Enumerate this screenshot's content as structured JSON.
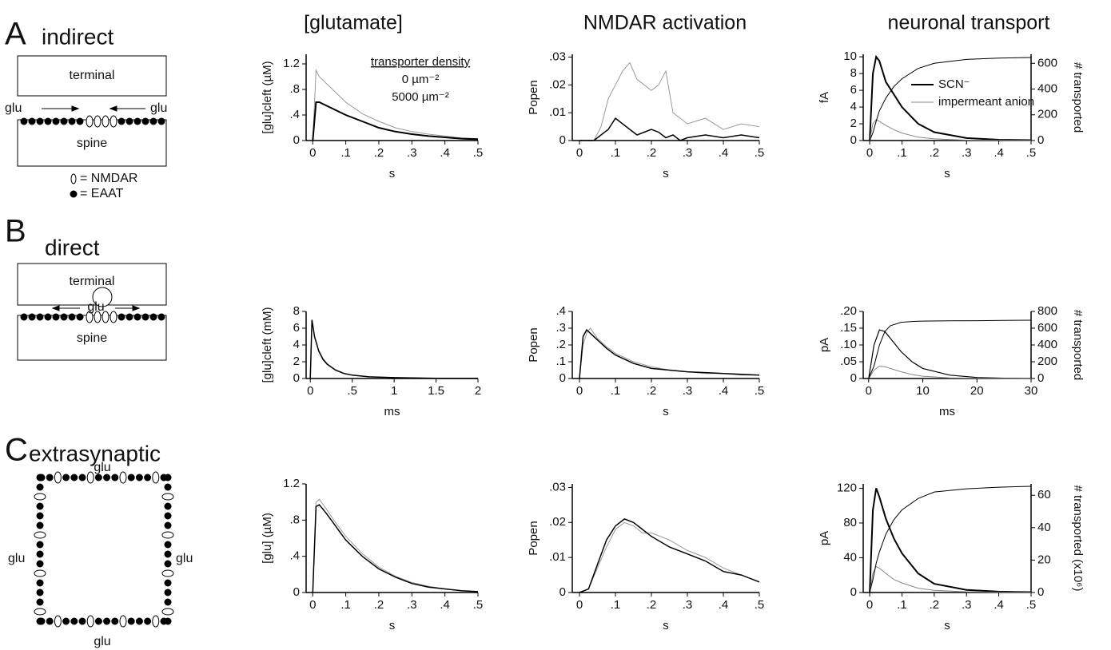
{
  "headers": [
    "[glutamate]",
    "NMDAR activation",
    "neuronal transport"
  ],
  "panels": [
    {
      "letter": "A",
      "title": "indirect",
      "terminal": "terminal",
      "spine": "spine",
      "glu_left": "glu",
      "glu_right": "glu",
      "nmdar": "= NMDAR",
      "eaat": "= EAAT"
    },
    {
      "letter": "B",
      "title": "direct",
      "terminal": "terminal",
      "spine": "spine",
      "glu": "glu"
    },
    {
      "letter": "C",
      "title": "extrasynaptic",
      "glu_top": "glu",
      "glu_left": "glu",
      "glu_right": "glu",
      "glu_bottom": "glu"
    }
  ],
  "chart_data": [
    {
      "type": "line",
      "xlabel": "s",
      "ylabel": "[glu]cleft (µM)",
      "xlim": [
        -0.02,
        0.5
      ],
      "ylim": [
        0,
        1.35
      ],
      "xticks": [
        0,
        {
          "value": 0.1,
          "label": ".1"
        },
        {
          "value": 0.2,
          "label": ".2"
        },
        {
          "value": 0.3,
          "label": ".3"
        },
        {
          "value": 0.4,
          "label": ".4"
        },
        {
          "value": 0.5,
          "label": ".5"
        }
      ],
      "yticks": [
        0,
        {
          "value": 0.4,
          "label": ".4"
        },
        {
          "value": 0.8,
          "label": ".8"
        },
        1.2
      ],
      "legend_title": "transporter density",
      "legend": "upper right",
      "x": [
        0,
        0.01,
        0.02,
        0.04,
        0.06,
        0.08,
        0.1,
        0.15,
        0.2,
        0.25,
        0.3,
        0.35,
        0.4,
        0.45,
        0.5
      ],
      "series": [
        {
          "name": "0 µm⁻²",
          "color": "#999999",
          "line_width": 1,
          "values": [
            0,
            1.1,
            1.0,
            0.9,
            0.8,
            0.7,
            0.6,
            0.42,
            0.3,
            0.2,
            0.14,
            0.1,
            0.07,
            0.04,
            0.03
          ]
        },
        {
          "name": "5000 µm⁻²",
          "color": "#000000",
          "line_width": 2,
          "values": [
            0,
            0.6,
            0.6,
            0.55,
            0.5,
            0.45,
            0.4,
            0.3,
            0.2,
            0.14,
            0.1,
            0.07,
            0.05,
            0.03,
            0.02
          ]
        }
      ]
    },
    {
      "type": "line",
      "xlabel": "s",
      "ylabel": "Popen",
      "xlim": [
        -0.02,
        0.5
      ],
      "ylim": [
        0,
        0.031
      ],
      "xticks": [
        0,
        {
          "value": 0.1,
          "label": ".1"
        },
        {
          "value": 0.2,
          "label": ".2"
        },
        {
          "value": 0.3,
          "label": ".3"
        },
        {
          "value": 0.4,
          "label": ".4"
        },
        {
          "value": 0.5,
          "label": ".5"
        }
      ],
      "yticks": [
        0,
        {
          "value": 0.01,
          "label": ".01"
        },
        {
          "value": 0.02,
          "label": ".02"
        },
        {
          "value": 0.03,
          "label": ".03"
        }
      ],
      "x": [
        0,
        0.04,
        0.06,
        0.08,
        0.1,
        0.12,
        0.14,
        0.16,
        0.18,
        0.2,
        0.22,
        0.24,
        0.26,
        0.28,
        0.3,
        0.35,
        0.4,
        0.45,
        0.5
      ],
      "series": [
        {
          "color": "#999999",
          "line_width": 1,
          "values": [
            0,
            0,
            0.005,
            0.015,
            0.02,
            0.025,
            0.028,
            0.022,
            0.02,
            0.018,
            0.02,
            0.025,
            0.01,
            0.008,
            0.006,
            0.008,
            0.004,
            0.006,
            0.005
          ]
        },
        {
          "color": "#000000",
          "line_width": 1.5,
          "values": [
            0,
            0,
            0.002,
            0.004,
            0.008,
            0.006,
            0.004,
            0.002,
            0.003,
            0.004,
            0.003,
            0.001,
            0.002,
            0,
            0.001,
            0.002,
            0.001,
            0.002,
            0.001
          ]
        }
      ]
    },
    {
      "type": "line",
      "xlabel": "s",
      "ylabel": "fA",
      "y2label": "# transported",
      "xlim": [
        -0.02,
        0.5
      ],
      "ylim": [
        0,
        10.3
      ],
      "y2lim": [
        0,
        670
      ],
      "xticks": [
        0,
        {
          "value": 0.1,
          "label": ".1"
        },
        {
          "value": 0.2,
          "label": ".2"
        },
        {
          "value": 0.3,
          "label": ".3"
        },
        {
          "value": 0.4,
          "label": ".4"
        },
        {
          "value": 0.5,
          "label": ".5"
        }
      ],
      "yticks": [
        0,
        2,
        4,
        6,
        8,
        10
      ],
      "y2ticks": [
        0,
        200,
        400,
        600
      ],
      "legend": "upper right",
      "x": [
        0,
        0.01,
        0.02,
        0.03,
        0.05,
        0.075,
        0.1,
        0.15,
        0.2,
        0.3,
        0.4,
        0.5
      ],
      "series": [
        {
          "name": "SCN⁻",
          "color": "#000000",
          "line_width": 2,
          "values": [
            0,
            8,
            10,
            9.5,
            7,
            5.5,
            4,
            2,
            1,
            0.3,
            0.1,
            0.05
          ]
        },
        {
          "name": "impermeant anion",
          "color": "#888888",
          "line_width": 1,
          "values": [
            0,
            2,
            2.5,
            2.3,
            1.8,
            1.3,
            0.9,
            0.4,
            0.2,
            0.05,
            0.02,
            0
          ]
        },
        {
          "color": "#000000",
          "line_width": 1,
          "axis": "y2",
          "values": [
            0,
            60,
            150,
            230,
            330,
            420,
            480,
            560,
            600,
            630,
            640,
            645
          ]
        }
      ]
    },
    {
      "type": "line",
      "xlabel": "ms",
      "ylabel": "[glu]cleft (mM)",
      "xlim": [
        -0.05,
        2
      ],
      "ylim": [
        0,
        8
      ],
      "xticks": [
        0,
        {
          "value": 0.5,
          "label": ".5"
        },
        1,
        1.5,
        2
      ],
      "yticks": [
        0,
        2,
        4,
        6,
        8
      ],
      "x": [
        0,
        0.02,
        0.05,
        0.1,
        0.15,
        0.2,
        0.3,
        0.4,
        0.5,
        0.7,
        1,
        1.5,
        2
      ],
      "series": [
        {
          "color": "#999999",
          "line_width": 1,
          "values": [
            0,
            6.8,
            5.1,
            3.4,
            2.4,
            1.8,
            1.05,
            0.65,
            0.42,
            0.21,
            0.1,
            0.03,
            0.01
          ]
        },
        {
          "color": "#000000",
          "line_width": 1.5,
          "values": [
            0,
            7,
            5,
            3.3,
            2.3,
            1.7,
            1,
            0.6,
            0.4,
            0.2,
            0.1,
            0.03,
            0.01
          ]
        }
      ]
    },
    {
      "type": "line",
      "xlabel": "s",
      "ylabel": "Popen",
      "xlim": [
        -0.02,
        0.5
      ],
      "ylim": [
        0,
        0.4
      ],
      "xticks": [
        0,
        {
          "value": 0.1,
          "label": ".1"
        },
        {
          "value": 0.2,
          "label": ".2"
        },
        {
          "value": 0.3,
          "label": ".3"
        },
        {
          "value": 0.4,
          "label": ".4"
        },
        {
          "value": 0.5,
          "label": ".5"
        }
      ],
      "yticks": [
        0,
        {
          "value": 0.1,
          "label": ".1"
        },
        {
          "value": 0.2,
          "label": ".2"
        },
        {
          "value": 0.3,
          "label": ".3"
        },
        {
          "value": 0.4,
          "label": ".4"
        }
      ],
      "x": [
        0,
        0.01,
        0.02,
        0.03,
        0.05,
        0.075,
        0.1,
        0.15,
        0.2,
        0.25,
        0.3,
        0.35,
        0.4,
        0.45,
        0.5
      ],
      "series": [
        {
          "color": "#999999",
          "line_width": 1,
          "values": [
            0,
            0.2,
            0.27,
            0.3,
            0.24,
            0.19,
            0.15,
            0.1,
            0.07,
            0.05,
            0.04,
            0.03,
            0.03,
            0.02,
            0.02
          ]
        },
        {
          "color": "#000000",
          "line_width": 1.5,
          "values": [
            0,
            0.25,
            0.29,
            0.27,
            0.23,
            0.18,
            0.14,
            0.09,
            0.06,
            0.05,
            0.04,
            0.035,
            0.03,
            0.025,
            0.02
          ]
        }
      ]
    },
    {
      "type": "line",
      "xlabel": "ms",
      "ylabel": "pA",
      "y2label": "# transported",
      "xlim": [
        -1,
        30
      ],
      "ylim": [
        0,
        0.2
      ],
      "y2lim": [
        0,
        800
      ],
      "xticks": [
        0,
        10,
        20,
        30
      ],
      "yticks": [
        0,
        {
          "value": 0.05,
          "label": ".05"
        },
        {
          "value": 0.1,
          "label": ".10"
        },
        {
          "value": 0.15,
          "label": ".15"
        },
        {
          "value": 0.2,
          "label": ".20"
        }
      ],
      "y2ticks": [
        0,
        200,
        400,
        600,
        800
      ],
      "x": [
        0,
        1,
        2,
        3,
        4,
        6,
        8,
        10,
        15,
        20,
        25,
        30
      ],
      "series": [
        {
          "color": "#000000",
          "line_width": 1.2,
          "values": [
            0,
            0.1,
            0.145,
            0.14,
            0.12,
            0.08,
            0.05,
            0.03,
            0.01,
            0.003,
            0.001,
            0
          ]
        },
        {
          "color": "#888888",
          "line_width": 1,
          "values": [
            0,
            0.025,
            0.037,
            0.035,
            0.03,
            0.02,
            0.012,
            0.007,
            0.002,
            0.001,
            0,
            0
          ]
        },
        {
          "color": "#000000",
          "line_width": 1,
          "axis": "y2",
          "values": [
            0,
            150,
            400,
            560,
            630,
            670,
            680,
            685,
            688,
            690,
            692,
            695
          ]
        }
      ]
    },
    {
      "type": "line",
      "xlabel": "s",
      "ylabel": "[glu] (µM)",
      "xlim": [
        -0.02,
        0.5
      ],
      "ylim": [
        0,
        1.2
      ],
      "xticks": [
        0,
        {
          "value": 0.1,
          "label": ".1"
        },
        {
          "value": 0.2,
          "label": ".2"
        },
        {
          "value": 0.3,
          "label": ".3"
        },
        {
          "value": 0.4,
          "label": ".4"
        },
        {
          "value": 0.5,
          "label": ".5"
        }
      ],
      "yticks": [
        0,
        {
          "value": 0.4,
          "label": ".4"
        },
        {
          "value": 0.8,
          "label": ".8"
        },
        1.2
      ],
      "x": [
        0,
        0.01,
        0.02,
        0.04,
        0.06,
        0.08,
        0.1,
        0.15,
        0.2,
        0.25,
        0.3,
        0.35,
        0.4,
        0.45,
        0.5
      ],
      "series": [
        {
          "color": "#999999",
          "line_width": 1,
          "values": [
            0,
            1.0,
            1.03,
            0.93,
            0.82,
            0.72,
            0.62,
            0.43,
            0.28,
            0.18,
            0.11,
            0.07,
            0.04,
            0.02,
            0.01
          ]
        },
        {
          "color": "#000000",
          "line_width": 1.5,
          "values": [
            0,
            0.95,
            0.97,
            0.88,
            0.78,
            0.68,
            0.58,
            0.4,
            0.26,
            0.17,
            0.1,
            0.06,
            0.04,
            0.02,
            0.01
          ]
        }
      ]
    },
    {
      "type": "line",
      "xlabel": "s",
      "ylabel": "Popen",
      "xlim": [
        -0.02,
        0.5
      ],
      "ylim": [
        0,
        0.031
      ],
      "xticks": [
        0,
        {
          "value": 0.1,
          "label": ".1"
        },
        {
          "value": 0.2,
          "label": ".2"
        },
        {
          "value": 0.3,
          "label": ".3"
        },
        {
          "value": 0.4,
          "label": ".4"
        },
        {
          "value": 0.5,
          "label": ".5"
        }
      ],
      "yticks": [
        0,
        {
          "value": 0.01,
          "label": ".01"
        },
        {
          "value": 0.02,
          "label": ".02"
        },
        {
          "value": 0.03,
          "label": ".03"
        }
      ],
      "x": [
        0,
        0.025,
        0.05,
        0.075,
        0.1,
        0.125,
        0.15,
        0.175,
        0.2,
        0.25,
        0.3,
        0.35,
        0.4,
        0.45,
        0.5
      ],
      "series": [
        {
          "color": "#999999",
          "line_width": 1,
          "values": [
            0,
            0.001,
            0.007,
            0.013,
            0.018,
            0.02,
            0.019,
            0.017,
            0.017,
            0.015,
            0.012,
            0.01,
            0.007,
            0.005,
            0.003
          ]
        },
        {
          "color": "#000000",
          "line_width": 1.5,
          "values": [
            0,
            0.001,
            0.008,
            0.015,
            0.019,
            0.021,
            0.02,
            0.018,
            0.016,
            0.013,
            0.011,
            0.009,
            0.006,
            0.005,
            0.003
          ]
        }
      ]
    },
    {
      "type": "line",
      "xlabel": "s",
      "ylabel": "pA",
      "y2label": "# transported (x10⁶)",
      "xlim": [
        -0.02,
        0.5
      ],
      "ylim": [
        0,
        125
      ],
      "y2lim": [
        0,
        67
      ],
      "xticks": [
        0,
        {
          "value": 0.1,
          "label": ".1"
        },
        {
          "value": 0.2,
          "label": ".2"
        },
        {
          "value": 0.3,
          "label": ".3"
        },
        {
          "value": 0.4,
          "label": ".4"
        },
        {
          "value": 0.5,
          "label": ".5"
        }
      ],
      "yticks": [
        0,
        40,
        80,
        120
      ],
      "y2ticks": [
        0,
        20,
        40,
        60
      ],
      "x": [
        0,
        0.01,
        0.02,
        0.03,
        0.05,
        0.075,
        0.1,
        0.15,
        0.2,
        0.3,
        0.4,
        0.5
      ],
      "series": [
        {
          "color": "#000000",
          "line_width": 2,
          "values": [
            0,
            95,
            120,
            110,
            85,
            62,
            45,
            22,
            10,
            3,
            1,
            0.5
          ]
        },
        {
          "color": "#888888",
          "line_width": 1,
          "values": [
            0,
            22,
            30,
            28,
            22,
            15,
            11,
            5,
            2.5,
            0.8,
            0.3,
            0.1
          ]
        },
        {
          "color": "#000000",
          "line_width": 1,
          "axis": "y2",
          "values": [
            0,
            8,
            18,
            25,
            36,
            45,
            51,
            58,
            62,
            64,
            65,
            65.5
          ]
        }
      ]
    }
  ]
}
